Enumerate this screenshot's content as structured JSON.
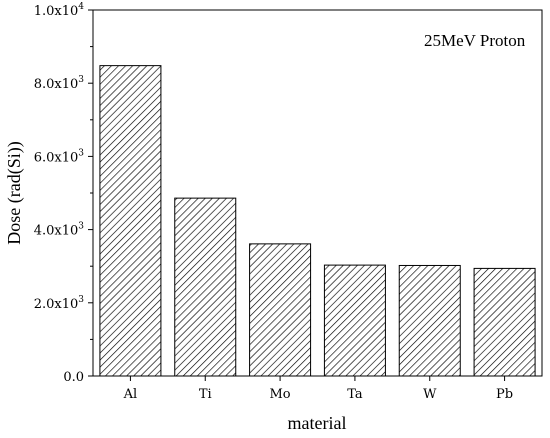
{
  "chart_data": {
    "type": "bar",
    "categories": [
      "Al",
      "Ti",
      "Mo",
      "Ta",
      "W",
      "Pb"
    ],
    "values": [
      8480,
      4860,
      3610,
      3030,
      3020,
      2940
    ],
    "xlabel": "material",
    "ylabel": "Dose (rad(Si))",
    "ylim": [
      0,
      10000
    ],
    "yticks": [
      {
        "value": 0,
        "mant": "0.0",
        "exp": ""
      },
      {
        "value": 2000,
        "mant": "2.0x10",
        "exp": "3"
      },
      {
        "value": 4000,
        "mant": "4.0x10",
        "exp": "3"
      },
      {
        "value": 6000,
        "mant": "6.0x10",
        "exp": "3"
      },
      {
        "value": 8000,
        "mant": "8.0x10",
        "exp": "3"
      },
      {
        "value": 10000,
        "mant": "1.0x10",
        "exp": "4"
      }
    ],
    "annotation": "25MeV Proton",
    "bar_fill": "hatched",
    "grid": false,
    "legend": "none"
  }
}
